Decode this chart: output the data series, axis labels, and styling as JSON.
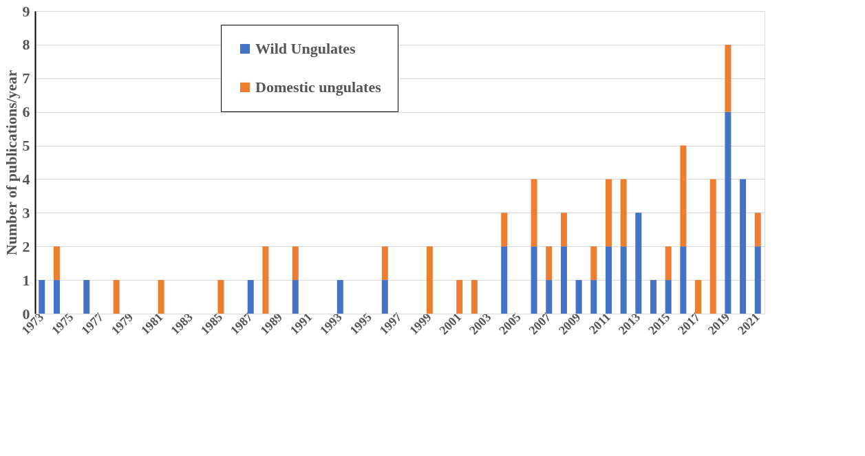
{
  "chart_data": {
    "type": "bar",
    "stacked": true,
    "ylabel": "Number of publications/year",
    "categories": [
      "1973",
      null,
      "1975",
      null,
      "1977",
      null,
      "1979",
      null,
      "1981",
      null,
      "1983",
      null,
      "1985",
      null,
      "1987",
      null,
      "1989",
      null,
      "1991",
      null,
      "1993",
      null,
      "1995",
      null,
      "1997",
      null,
      "1999",
      null,
      "2001",
      null,
      "2003",
      null,
      "2005",
      null,
      "2007",
      null,
      "2009",
      null,
      "2011",
      null,
      "2013",
      null,
      "2015",
      null,
      "2017",
      null,
      "2019",
      null,
      "2021"
    ],
    "series": [
      {
        "name": "Wild Ungulates",
        "color": "#4472c4",
        "values": [
          1,
          1,
          0,
          1,
          0,
          0,
          0,
          0,
          0,
          0,
          0,
          0,
          0,
          0,
          1,
          0,
          0,
          1,
          0,
          0,
          1,
          0,
          0,
          1,
          0,
          0,
          0,
          0,
          0,
          0,
          0,
          2,
          0,
          2,
          1,
          2,
          1,
          1,
          2,
          2,
          3,
          1,
          1,
          2,
          0,
          0,
          6,
          4,
          2
        ]
      },
      {
        "name": "Domestic ungulates",
        "color": "#ed7d31",
        "values": [
          0,
          1,
          0,
          0,
          0,
          1,
          0,
          0,
          1,
          0,
          0,
          0,
          1,
          0,
          0,
          2,
          0,
          1,
          0,
          0,
          0,
          0,
          0,
          1,
          0,
          0,
          2,
          0,
          1,
          1,
          0,
          1,
          0,
          2,
          1,
          1,
          0,
          1,
          2,
          2,
          0,
          0,
          1,
          3,
          1,
          4,
          2,
          0,
          1
        ]
      }
    ],
    "ylim": [
      0,
      9
    ],
    "yticks": [
      0,
      1,
      2,
      3,
      4,
      5,
      6,
      7,
      8,
      9
    ],
    "grid": "y",
    "legend": "top left"
  }
}
